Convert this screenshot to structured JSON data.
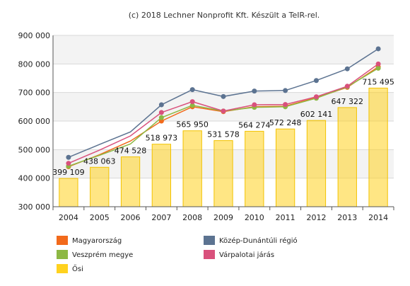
{
  "credit": "(c) 2018 Lechner Nonprofit Kft. Készült a TeIR-rel.",
  "chart_data": {
    "type": "bar",
    "title": "",
    "xlabel": "",
    "ylabel": "",
    "categories": [
      "2004",
      "2005",
      "2006",
      "2007",
      "2008",
      "2009",
      "2010",
      "2011",
      "2012",
      "2013",
      "2014"
    ],
    "ylim": [
      300000,
      900000
    ],
    "yticks": [
      300000,
      400000,
      500000,
      600000,
      700000,
      800000,
      900000
    ],
    "ytick_labels": [
      "300 000",
      "400 000",
      "500 000",
      "600 000",
      "700 000",
      "800 000",
      "900 000"
    ],
    "grid": true,
    "legend_position": "bottom",
    "bar_series": {
      "name": "Ősi",
      "color": "#ffd21f",
      "values": [
        399109,
        438063,
        474528,
        518973,
        565950,
        531578,
        564274,
        572248,
        602141,
        647322,
        715495
      ],
      "labels": [
        "399 109",
        "438 063",
        "474 528",
        "518 973",
        "565 950",
        "531 578",
        "564 274",
        "572 248",
        "602 141",
        "647 322",
        "715 495"
      ]
    },
    "line_series": [
      {
        "name": "Magyarország",
        "color": "#f26a1b",
        "values": [
          440000,
          482000,
          530000,
          600000,
          650000,
          633000,
          650000,
          652000,
          682000,
          718000,
          790000
        ]
      },
      {
        "name": "Veszprém megye",
        "color": "#8db844",
        "values": [
          442000,
          480000,
          520000,
          612000,
          655000,
          635000,
          648000,
          650000,
          680000,
          720000,
          785000
        ]
      },
      {
        "name": "Közép-Dunántúli régió",
        "color": "#5c7391",
        "values": [
          473000,
          518000,
          562000,
          657000,
          710000,
          686000,
          705000,
          707000,
          742000,
          783000,
          853000
        ]
      },
      {
        "name": "Várpalotai járás",
        "color": "#d9517c",
        "values": [
          452000,
          498000,
          548000,
          630000,
          668000,
          635000,
          657000,
          658000,
          685000,
          722000,
          800000
        ]
      }
    ],
    "legend": [
      {
        "label": "Magyarország",
        "color": "#f26a1b"
      },
      {
        "label": "Közép-Dunántúli régió",
        "color": "#5c7391"
      },
      {
        "label": "Veszprém megye",
        "color": "#8db844"
      },
      {
        "label": "Várpalotai járás",
        "color": "#d9517c"
      },
      {
        "label": "Ősi",
        "color": "#ffd21f"
      }
    ]
  }
}
